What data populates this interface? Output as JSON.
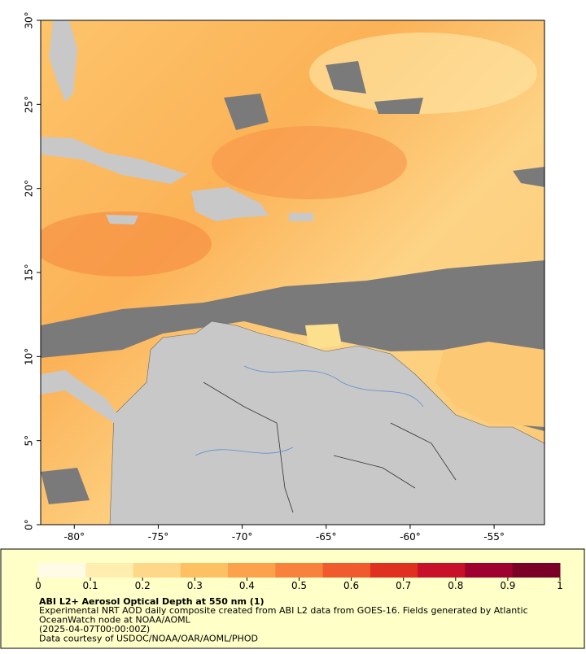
{
  "map": {
    "xlim": [
      -82,
      -52
    ],
    "ylim": [
      0,
      30
    ],
    "xticks": [
      {
        "value": -80,
        "label": "-80°"
      },
      {
        "value": -75,
        "label": "-75°"
      },
      {
        "value": -70,
        "label": "-70°"
      },
      {
        "value": -65,
        "label": "-65°"
      },
      {
        "value": -60,
        "label": "-60°"
      },
      {
        "value": -55,
        "label": "-55°"
      }
    ],
    "yticks": [
      {
        "value": 0,
        "label": "0°"
      },
      {
        "value": 5,
        "label": "5°"
      },
      {
        "value": 10,
        "label": "10°"
      },
      {
        "value": 15,
        "label": "15°"
      },
      {
        "value": 20,
        "label": "20°"
      },
      {
        "value": 25,
        "label": "25°"
      },
      {
        "value": 30,
        "label": "30°"
      }
    ]
  },
  "colorbar": {
    "range": [
      0,
      1
    ],
    "ticks": [
      0,
      0.1,
      0.2,
      0.3,
      0.4,
      0.5,
      0.6,
      0.7,
      0.8,
      0.9,
      1
    ],
    "colors": [
      "#fffbe6",
      "#ffeeb0",
      "#fed888",
      "#fdc063",
      "#fca24c",
      "#f8823c",
      "#f05a2c",
      "#e03020",
      "#c8102a",
      "#9e0030",
      "#7a0028"
    ]
  },
  "caption": {
    "title": "ABI L2+ Aerosol Optical Depth at 550 nm (1)",
    "lines": [
      "Experimental NRT AOD daily composite created from ABI L2 data from GOES-16. Fields generated by Atlantic",
      "OceanWatch node at NOAA/AOML",
      "(2025-04-07T00:00:00Z)",
      "Data courtesy of USDOC/NOAA/OAR/AOML/PHOD"
    ]
  }
}
